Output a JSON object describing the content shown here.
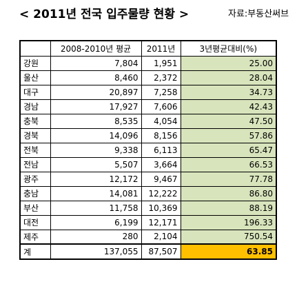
{
  "title": "< 2011년 전국 입주물량 현황 >",
  "source": "자료:부동산써브",
  "headers": [
    "",
    "2008-2010년 평균",
    "2011년",
    "3년평균대비(%)"
  ],
  "rows": [
    {
      "region": "강원",
      "avg": "7,804",
      "y2011": "1,951",
      "pct": "25.00"
    },
    {
      "region": "울산",
      "avg": "8,460",
      "y2011": "2,372",
      "pct": "28.04"
    },
    {
      "region": "대구",
      "avg": "20,897",
      "y2011": "7,258",
      "pct": "34.73"
    },
    {
      "region": "경남",
      "avg": "17,927",
      "y2011": "7,606",
      "pct": "42.43"
    },
    {
      "region": "충북",
      "avg": "8,535",
      "y2011": "4,054",
      "pct": "47.50"
    },
    {
      "region": "경북",
      "avg": "14,096",
      "y2011": "8,156",
      "pct": "57.86"
    },
    {
      "region": "전북",
      "avg": "9,338",
      "y2011": "6,113",
      "pct": "65.47"
    },
    {
      "region": "전남",
      "avg": "5,507",
      "y2011": "3,664",
      "pct": "66.53"
    },
    {
      "region": "광주",
      "avg": "12,172",
      "y2011": "9,467",
      "pct": "77.78"
    },
    {
      "region": "충남",
      "avg": "14,081",
      "y2011": "12,222",
      "pct": "86.80"
    },
    {
      "region": "부산",
      "avg": "11,758",
      "y2011": "10,369",
      "pct": "88.19"
    },
    {
      "region": "대전",
      "avg": "6,199",
      "y2011": "12,171",
      "pct": "196.33"
    },
    {
      "region": "제주",
      "avg": "280",
      "y2011": "2,104",
      "pct": "750.54"
    }
  ],
  "total": {
    "region": "계",
    "avg": "137,055",
    "y2011": "87,507",
    "pct": "63.85"
  },
  "colors": {
    "pct_fill": "#d8e4bc",
    "total_pct_fill": "#ffc000"
  }
}
